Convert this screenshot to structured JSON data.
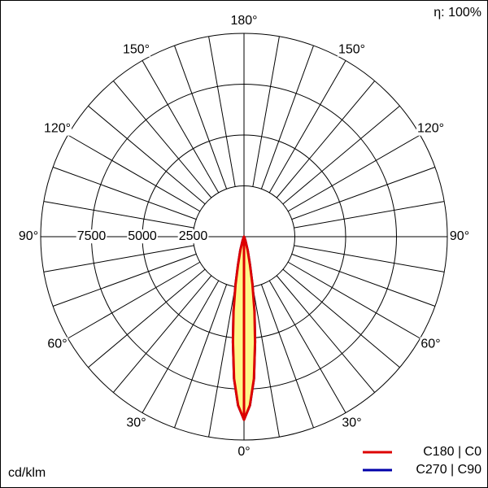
{
  "chart_data": {
    "type": "polar",
    "efficiency_label": "η: 100%",
    "unit_label": "cd/klm",
    "rlim": [
      0,
      10000
    ],
    "rticks": [
      2500,
      5000,
      7500
    ],
    "angle_grid": [
      0,
      10,
      20,
      30,
      40,
      50,
      60,
      70,
      80,
      90,
      100,
      110,
      120,
      130,
      140,
      150,
      160,
      170,
      180
    ],
    "angle_ticks": [
      {
        "value": 0,
        "label": "0°"
      },
      {
        "value": 30,
        "label": "30°"
      },
      {
        "value": 60,
        "label": "60°"
      },
      {
        "value": 90,
        "label": "90°"
      },
      {
        "value": 120,
        "label": "120°"
      },
      {
        "value": 150,
        "label": "150°"
      },
      {
        "value": 180,
        "label": "180°"
      }
    ],
    "angles": [
      0,
      2,
      4,
      6,
      8,
      10,
      12,
      15,
      20,
      25,
      30,
      45,
      60,
      90
    ],
    "series": [
      {
        "name": "C270 | C90",
        "color": "#0000aa",
        "values": [
          9000,
          8300,
          7000,
          5200,
          3700,
          2400,
          1400,
          700,
          200,
          60,
          20,
          0,
          0,
          0
        ]
      },
      {
        "name": "C180 | C0",
        "color": "#dd0000",
        "fill": "#fff68a",
        "values": [
          9000,
          8300,
          7000,
          5200,
          3700,
          2400,
          1400,
          700,
          200,
          60,
          20,
          0,
          0,
          0
        ]
      }
    ]
  }
}
